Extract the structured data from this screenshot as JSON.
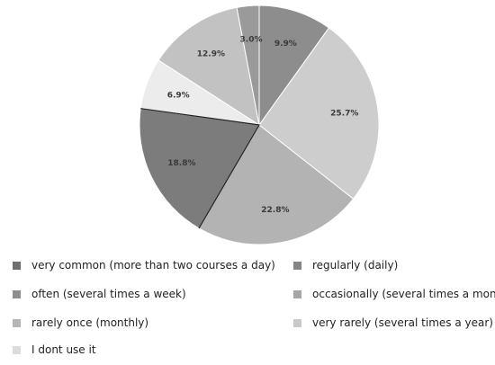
{
  "chart_data": {
    "type": "pie",
    "slices": [
      {
        "label": "regularly (daily)",
        "value": 9.9,
        "display": "9.9%",
        "color": "#8d8d8d"
      },
      {
        "label": "very rarely (several times a year)",
        "value": 25.7,
        "display": "25.7%",
        "color": "#cdcdcd"
      },
      {
        "label": "occasionally (several times a month)",
        "value": 22.8,
        "display": "22.8%",
        "color": "#b3b3b3"
      },
      {
        "label": "very common (more than two courses a day)",
        "value": 18.8,
        "display": "18.8%",
        "color": "#7c7c7c"
      },
      {
        "label": "I dont use it",
        "value": 6.9,
        "display": "6.9%",
        "color": "#ececec"
      },
      {
        "label": "rarely once (monthly)",
        "value": 12.9,
        "display": "12.9%",
        "color": "#c2c2c2"
      },
      {
        "label": "often (several times a week)",
        "value": 3.0,
        "display": "3.0%",
        "color": "#9a9a9a"
      }
    ],
    "legend": [
      {
        "label": "very common (more than two courses a day)",
        "color": "#6f6f6f"
      },
      {
        "label": "regularly (daily)",
        "color": "#858585"
      },
      {
        "label": "often (several times a week)",
        "color": "#8e8e8e"
      },
      {
        "label": "occasionally (several times a month)",
        "color": "#a6a6a6"
      },
      {
        "label": "rarely once (monthly)",
        "color": "#b6b6b6"
      },
      {
        "label": "very rarely (several times a year)",
        "color": "#c9c9c9"
      },
      {
        "label": "I dont use it",
        "color": "#dcdcdc"
      }
    ],
    "legend_placement": "bottom"
  }
}
